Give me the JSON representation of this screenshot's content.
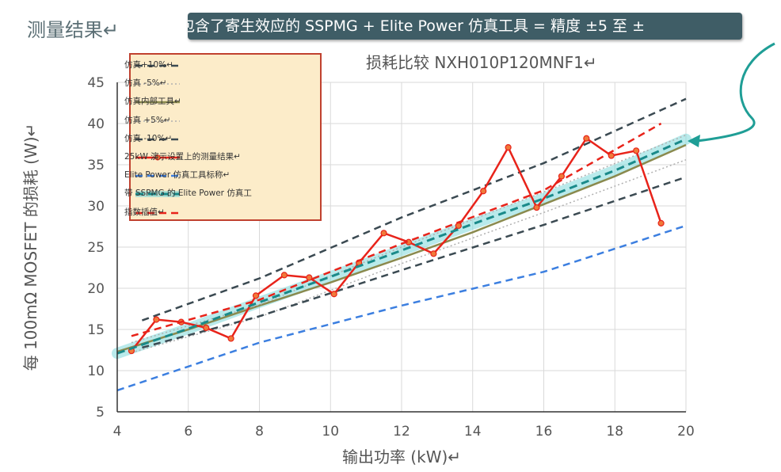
{
  "slide_title": "测量结果↵",
  "banner_text": "包含了寄生效应的 SSPMG + Elite Power 仿真工具 = 精度 ±5 至 ±",
  "colors": {
    "banner_bg": "#3f5d66",
    "band": "#7fd9da",
    "legend_bg": "#fcecc9",
    "legend_border": "#c0412f",
    "arrow": "#1f9e96"
  },
  "chart_data": {
    "type": "line",
    "title": "损耗比较 NXH010P120MNF1↵",
    "xlabel": "输出功率 (kW)↵",
    "ylabel": "每 100mΩ MOSFET 的损耗 (W)↵",
    "xlim": [
      4,
      20
    ],
    "ylim": [
      5,
      45
    ],
    "xticks": [
      4,
      6,
      8,
      10,
      12,
      14,
      16,
      18,
      20
    ],
    "yticks": [
      5,
      10,
      15,
      20,
      25,
      30,
      35,
      40,
      45
    ],
    "grid": true,
    "legend_position": "top-left",
    "series": [
      {
        "name": "仿真+10%↵",
        "style": "dashed",
        "color": "#3b4a52",
        "x": [
          4.7,
          8,
          12,
          16,
          20
        ],
        "y": [
          16.1,
          21.2,
          28.6,
          35.2,
          43.0
        ]
      },
      {
        "name": "仿真 -5%↵",
        "style": "dotted",
        "color": "#b0b0b0",
        "x": [
          4.4,
          8,
          12,
          16,
          20
        ],
        "y": [
          12.2,
          16.5,
          23.0,
          29.2,
          35.6
        ]
      },
      {
        "name": "仿真内部工具↵",
        "style": "solid",
        "color": "#8a8a4e",
        "x": [
          4,
          6,
          8,
          10,
          12,
          14,
          16,
          18,
          20
        ],
        "y": [
          12.3,
          15.0,
          17.9,
          20.7,
          23.7,
          26.8,
          30.2,
          33.6,
          37.4
        ]
      },
      {
        "name": "仿真 +5%↵",
        "style": "dotted",
        "color": "#b0b0b0",
        "x": [
          4.4,
          8,
          12,
          16,
          20
        ],
        "y": [
          13.4,
          18.0,
          25.0,
          31.7,
          38.6
        ]
      },
      {
        "name": "仿真 -10%↵",
        "style": "dashed",
        "color": "#3b4a52",
        "x": [
          4.7,
          8,
          12,
          16,
          20
        ],
        "y": [
          12.8,
          16.6,
          22.2,
          27.7,
          33.5
        ]
      },
      {
        "name": "25kW 演示设置上的测量结果↵",
        "style": "solid-markers",
        "color": "#e8231a",
        "x": [
          4.4,
          5.1,
          5.8,
          6.5,
          7.2,
          7.9,
          8.7,
          9.4,
          10.1,
          10.8,
          11.5,
          12.2,
          12.9,
          13.6,
          14.3,
          15.0,
          15.8,
          16.5,
          17.2,
          17.9,
          18.6,
          19.3
        ],
        "y": [
          12.4,
          16.2,
          15.9,
          15.2,
          13.9,
          19.1,
          21.6,
          21.3,
          19.3,
          23.1,
          26.7,
          25.6,
          24.2,
          27.6,
          31.8,
          37.1,
          29.8,
          33.6,
          38.2,
          36.1,
          36.7,
          27.9
        ]
      },
      {
        "name": "Elite Power 仿真工具标称↵",
        "style": "dashed",
        "color": "#3c7fe0",
        "x": [
          4,
          8,
          12,
          16,
          20
        ],
        "y": [
          7.6,
          13.4,
          17.9,
          22.0,
          27.6
        ]
      },
      {
        "name": "带 SSPMG 的 Elite Power 仿真工",
        "style": "dashed-band",
        "color": "#1a8a8a",
        "x": [
          4,
          6,
          8,
          10,
          12,
          14,
          16,
          18,
          20
        ],
        "y": [
          12.1,
          15.1,
          18.3,
          21.4,
          24.6,
          27.8,
          30.9,
          34.3,
          38.1
        ]
      },
      {
        "name": "指数插值↵",
        "style": "dashed",
        "color": "#e8231a",
        "x": [
          4.4,
          8,
          12,
          16,
          19.3
        ],
        "y": [
          14.2,
          18.6,
          25.4,
          31.9,
          40.0
        ]
      }
    ]
  }
}
